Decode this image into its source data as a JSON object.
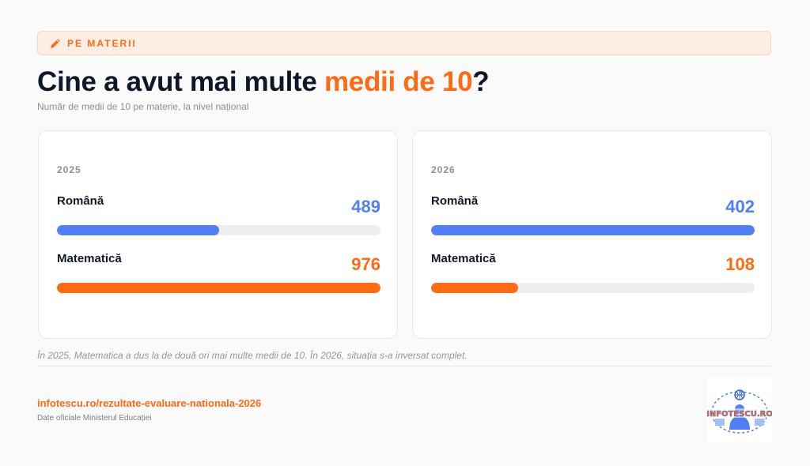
{
  "header": {
    "tag_label": "PE MATERII",
    "tag_icon": "pencil-icon",
    "title_before": "Cine a avut mai multe ",
    "title_accent": "medii de 10",
    "title_after": "?",
    "subtitle": "Număr de medii de 10 pe materie, la nivel național"
  },
  "colors": {
    "accent": "#ff6a13",
    "romana": "#4f7ef5",
    "matematica": "#ff6a13"
  },
  "chart_data": [
    {
      "type": "bar",
      "title": "2025",
      "categories": [
        "Română",
        "Matematică"
      ],
      "values": [
        489,
        976
      ],
      "xlim": [
        0,
        976
      ]
    },
    {
      "type": "bar",
      "title": "2026",
      "categories": [
        "Română",
        "Matematică"
      ],
      "values": [
        402,
        108
      ],
      "xlim": [
        0,
        402
      ]
    }
  ],
  "footer": {
    "note": "În 2025, Matematica a dus la de două ori mai multe medii de 10. În 2026, situația s-a inversat complet.",
    "source_link": "infotescu.ro/rezultate-evaluare-nationala-2026",
    "source_note": "Date oficiale Ministerul Educației",
    "logo_text": "INFOTESCU.RO"
  }
}
